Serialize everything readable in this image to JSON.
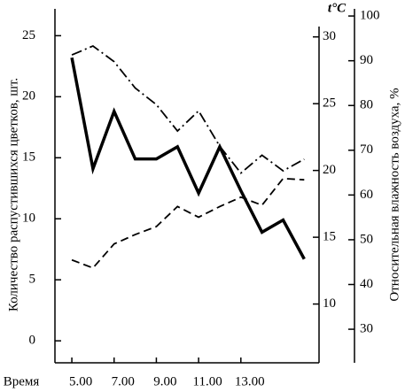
{
  "chart_data": {
    "type": "line",
    "y_label": "Количество распустившихся цветков, шт.",
    "y2_label": "t°C",
    "y3_label": "Относительная влажность воздуха, %",
    "x_label": "Время",
    "x": [
      5,
      6,
      7,
      8,
      9,
      10,
      11,
      12,
      13,
      14,
      15,
      16
    ],
    "xlim": [
      4.2,
      16.7
    ],
    "xticks": [
      {
        "value": 5,
        "label": "5.00"
      },
      {
        "value": 7,
        "label": "7.00"
      },
      {
        "value": 9,
        "label": "9.00"
      },
      {
        "value": 11,
        "label": "11.00"
      },
      {
        "value": 13,
        "label": "13.00"
      }
    ],
    "ylim": [
      -1.8,
      27.2
    ],
    "yticks": [
      0,
      5,
      10,
      15,
      20,
      25
    ],
    "y2lim": [
      5.6,
      32.1
    ],
    "y2ticks": [
      10,
      15,
      20,
      25,
      30
    ],
    "y3lim": [
      22.5,
      101.6
    ],
    "y3ticks": [
      30,
      40,
      50,
      60,
      70,
      80,
      90,
      100
    ],
    "series": [
      {
        "color": "#000",
        "style": "solid",
        "values": [
          23.2,
          14.1,
          18.8,
          14.9,
          14.9,
          15.9,
          12.1,
          15.9,
          12.3,
          8.9,
          9.9,
          6.7
        ]
      },
      {
        "color": "#000",
        "style": "dashed",
        "axis": "y2",
        "values": [
          13.3,
          12.7,
          14.5,
          15.2,
          15.8,
          17.3,
          16.5,
          17.3,
          18.0,
          17.4,
          19.4,
          19.3
        ]
      },
      {
        "color": "#000",
        "style": "dashdot",
        "axis": "y3",
        "values": [
          91.3,
          93.3,
          89.8,
          83.9,
          80.2,
          74.3,
          78.8,
          70.9,
          64.9,
          68.9,
          65.4,
          68.0
        ]
      }
    ]
  }
}
